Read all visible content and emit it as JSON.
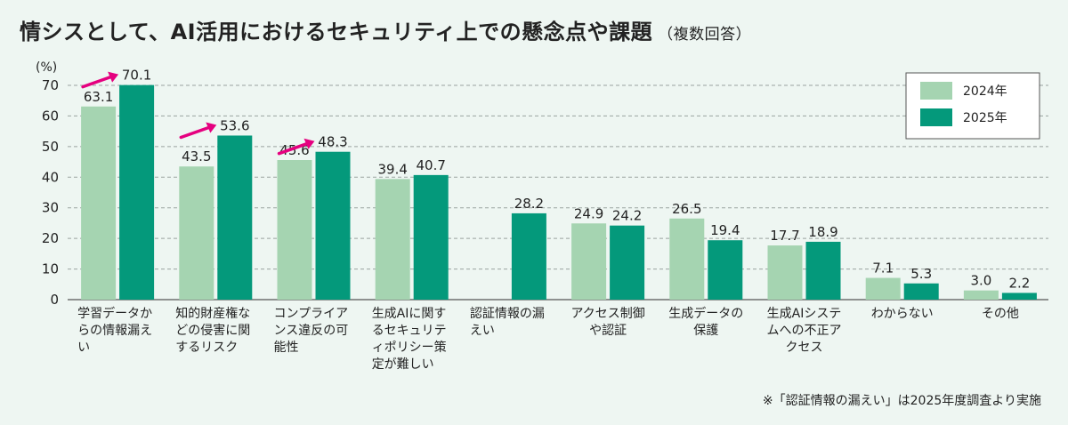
{
  "title": "情シスとして、AI活用におけるセキュリティ上での懸念点や課題",
  "subtitle": "（複数回答）",
  "footnote": "※「認証情報の漏えい」は2025年度調査より実施",
  "colors": {
    "s2024": "#a5d4b1",
    "s2025": "#04997b",
    "arrow": "#e5007f",
    "grid": "#9aa3a0"
  },
  "chart_data": {
    "type": "bar",
    "ylabel": "(%)",
    "ylim": [
      0,
      70
    ],
    "yticks": [
      0,
      10,
      20,
      30,
      40,
      50,
      60,
      70
    ],
    "grid": true,
    "legend": "top-right",
    "categories": [
      "学習データからの情報漏えい",
      "知的財産権などの侵害に関するリスク",
      "コンプライアンス違反の可能性",
      "生成AIに関するセキュリティポリシー策定が難しい",
      "認証情報の漏えい",
      "アクセス制御や認証",
      "生成データの保護",
      "生成AIシステムへの不正アクセス",
      "わからない",
      "その他"
    ],
    "series": [
      {
        "name": "2024年",
        "values": [
          63.1,
          43.5,
          45.6,
          39.4,
          null,
          24.9,
          26.5,
          17.7,
          7.1,
          3.0
        ],
        "labels": [
          "63.1",
          "43.5",
          "45.6",
          "39.4",
          "",
          "24.9",
          "26.5",
          "17.7",
          "7.1",
          "3.0"
        ]
      },
      {
        "name": "2025年",
        "values": [
          70.1,
          53.6,
          48.3,
          40.7,
          28.2,
          24.2,
          19.4,
          18.9,
          5.3,
          2.2
        ],
        "labels": [
          "70.1",
          "53.6",
          "48.3",
          "40.7",
          "28.2",
          "24.2",
          "19.4",
          "18.9",
          "5.3",
          "2.2"
        ]
      }
    ],
    "highlight_increase": [
      0,
      1,
      2
    ]
  }
}
